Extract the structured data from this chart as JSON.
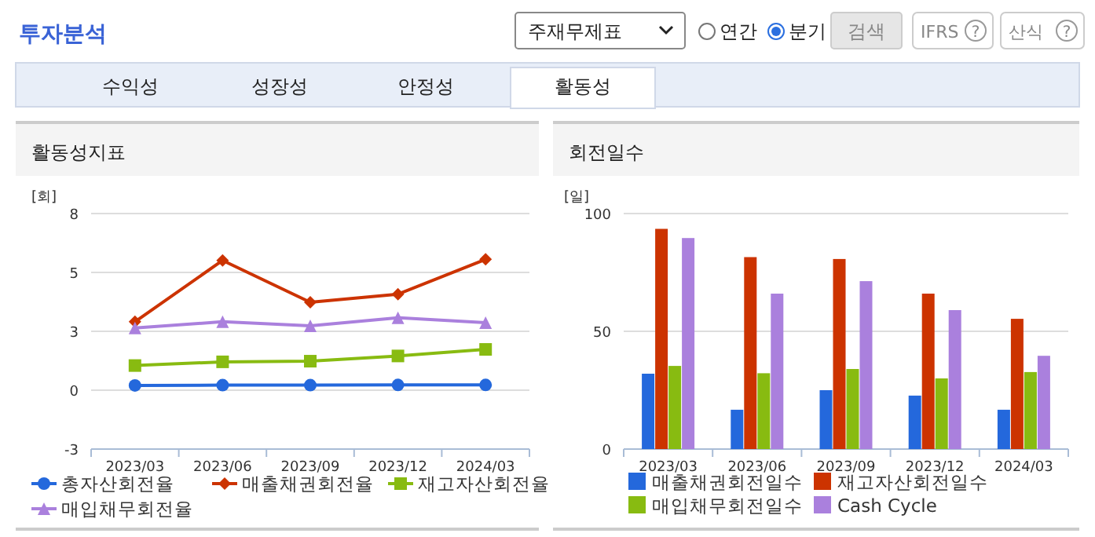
{
  "chart_data": [
    {
      "type": "line",
      "title": "활동성지표",
      "ylabel": "[회]",
      "annotations": [
        "투자분석",
        "주재무제표",
        "연간",
        "분기",
        "검색",
        "IFRS",
        "?",
        "산식",
        "?",
        "수익성",
        "성장성",
        "안정성",
        "활동성"
      ],
      "categories": [
        "2023/03",
        "2023/06",
        "2023/09",
        "2023/12",
        "2024/03"
      ],
      "series": [
        {
          "name": "총자산회전율",
          "color": "#2468dc",
          "marker": "circle",
          "values": [
            0.22,
            0.23,
            0.23,
            0.24,
            0.24
          ]
        },
        {
          "name": "매출채권회전율",
          "color": "#cc3300",
          "marker": "diamond",
          "values": [
            3.14,
            5.95,
            4.03,
            4.4,
            6.0
          ]
        },
        {
          "name": "재고자산회전율",
          "color": "#88bb11",
          "marker": "square",
          "values": [
            1.13,
            1.3,
            1.33,
            1.57,
            1.87
          ]
        },
        {
          "name": "매입채무회전율",
          "color": "#aa80dd",
          "marker": "triangle",
          "values": [
            2.85,
            3.14,
            2.95,
            3.32,
            3.1
          ]
        }
      ],
      "ylim": [
        -2.7,
        8.1
      ],
      "yticks": [
        {
          "value": -2.7,
          "label": "-3"
        },
        {
          "value": 0,
          "label": "0"
        },
        {
          "value": 2.7,
          "label": "3"
        },
        {
          "value": 5.4,
          "label": "5"
        },
        {
          "value": 8.1,
          "label": "8"
        }
      ],
      "grid": "y",
      "legend": "bottom",
      "line_style": "solid"
    },
    {
      "type": "bar",
      "title": "회전일수",
      "ylabel": "[일]",
      "categories": [
        "2023/03",
        "2023/06",
        "2023/09",
        "2023/12",
        "2024/03"
      ],
      "series": [
        {
          "name": "매출채권회전일수",
          "color": "#2468dc",
          "values": [
            32,
            16.7,
            25,
            22.7,
            16.7
          ]
        },
        {
          "name": "재고자산회전일수",
          "color": "#cc3300",
          "values": [
            93.5,
            81.5,
            80.7,
            66,
            55.3
          ]
        },
        {
          "name": "매입채무회전일수",
          "color": "#88bb11",
          "values": [
            35.3,
            32.2,
            34,
            30,
            32.7
          ]
        },
        {
          "name": "Cash Cycle",
          "color": "#aa80dd",
          "values": [
            89.6,
            66,
            71.3,
            59,
            39.6
          ]
        }
      ],
      "ylim": [
        0,
        100
      ],
      "yticks": [
        0,
        50,
        100
      ],
      "grid": "y",
      "legend": "bottom"
    }
  ]
}
